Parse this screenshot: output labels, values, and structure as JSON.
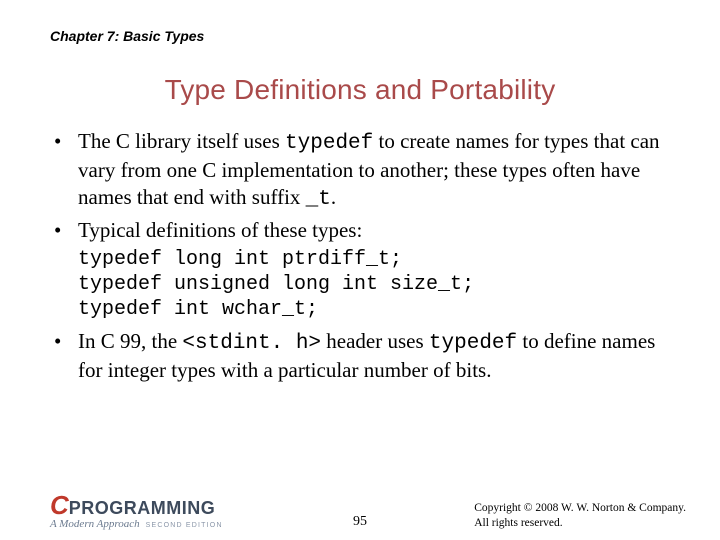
{
  "header": {
    "chapter": "Chapter 7: Basic Types"
  },
  "title": "Type Definitions and Portability",
  "title_color": "#a94a4a",
  "bullets": {
    "b1_pre": "The C library itself uses ",
    "b1_code": "typedef",
    "b1_post": " to create names for types that can vary from one C implementation to another; these types often have names that end with suffix ",
    "b1_code2": "_t",
    "b1_end": ".",
    "b2": "Typical definitions of these types:",
    "code_block": "typedef long int ptrdiff_t;\ntypedef unsigned long int size_t;\ntypedef int wchar_t;",
    "b3_pre": "In C 99, the ",
    "b3_code1": "<stdint. h>",
    "b3_mid": " header uses ",
    "b3_code2": "typedef",
    "b3_post": " to define names for integer types with a particular number of bits."
  },
  "footer": {
    "logo_c": "C",
    "logo_text": "PROGRAMMING",
    "logo_sub": "A Modern Approach",
    "logo_edition": "SECOND EDITION",
    "page": "95",
    "copyright_line1": "Copyright © 2008 W. W. Norton & Company.",
    "copyright_line2": "All rights reserved."
  },
  "styling": {
    "body_font": "Times New Roman",
    "heading_font": "Arial",
    "code_font": "Courier New",
    "title_fontsize": 28,
    "body_fontsize": 21,
    "code_fontsize": 20,
    "chapter_fontsize": 14,
    "background_color": "#ffffff",
    "text_color": "#000000",
    "logo_c_color": "#c0392b",
    "logo_text_color": "#3d4a5c"
  }
}
